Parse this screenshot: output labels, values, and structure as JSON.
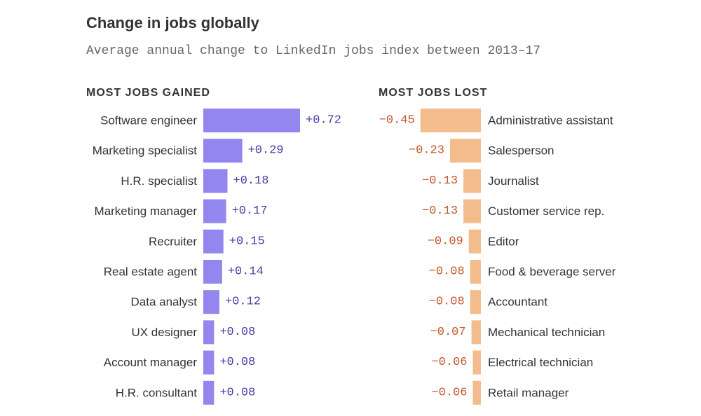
{
  "title": "Change in jobs globally",
  "subtitle": "Average annual change to LinkedIn jobs index between 2013–17",
  "colors": {
    "gained_bar": "#9386ee",
    "gained_text": "#4b3aa3",
    "lost_bar": "#f3bc8c",
    "lost_text": "#c1572b"
  },
  "chart_data": [
    {
      "type": "bar",
      "orientation": "horizontal",
      "title": "MOST JOBS GAINED",
      "categories": [
        "Software engineer",
        "Marketing specialist",
        "H.R. specialist",
        "Marketing manager",
        "Recruiter",
        "Real estate agent",
        "Data analyst",
        "UX designer",
        "Account manager",
        "H.R. consultant"
      ],
      "values": [
        0.72,
        0.29,
        0.18,
        0.17,
        0.15,
        0.14,
        0.12,
        0.08,
        0.08,
        0.08
      ],
      "value_labels": [
        "+0.72",
        "+0.29",
        "+0.18",
        "+0.17",
        "+0.15",
        "+0.14",
        "+0.12",
        "+0.08",
        "+0.08",
        "+0.08"
      ]
    },
    {
      "type": "bar",
      "orientation": "horizontal",
      "title": "MOST JOBS LOST",
      "categories": [
        "Administrative assistant",
        "Salesperson",
        "Journalist",
        "Customer service rep.",
        "Editor",
        "Food & beverage server",
        "Accountant",
        "Mechanical technician",
        "Electrical technician",
        "Retail manager"
      ],
      "values": [
        -0.45,
        -0.23,
        -0.13,
        -0.13,
        -0.09,
        -0.08,
        -0.08,
        -0.07,
        -0.06,
        -0.06
      ],
      "value_labels": [
        "−0.45",
        "−0.23",
        "−0.13",
        "−0.13",
        "−0.09",
        "−0.08",
        "−0.08",
        "−0.07",
        "−0.06",
        "−0.06"
      ]
    }
  ]
}
